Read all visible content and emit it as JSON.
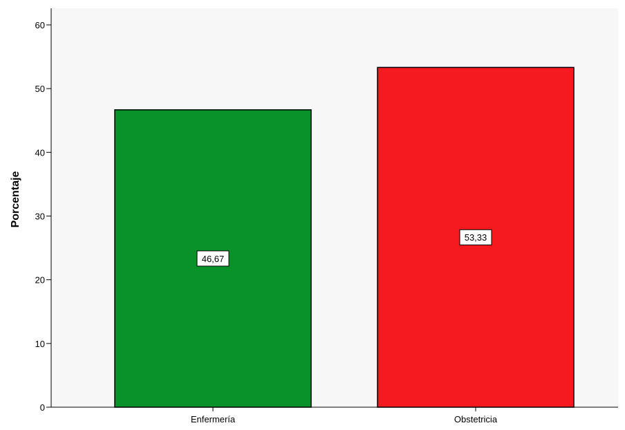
{
  "chart_data": {
    "type": "bar",
    "categories": [
      "Enfermería",
      "Obstetricia"
    ],
    "values": [
      46.67,
      53.33
    ],
    "value_labels": [
      "46,67",
      "53,33"
    ],
    "colors": [
      "#0a922a",
      "#f51a1f"
    ],
    "title": "",
    "xlabel": "",
    "ylabel": "Porcentaje",
    "ylim": [
      0,
      60
    ],
    "yticks": [
      0,
      10,
      20,
      30,
      40,
      50,
      60
    ],
    "grid": false,
    "plot_background": "#f7f7f7"
  }
}
